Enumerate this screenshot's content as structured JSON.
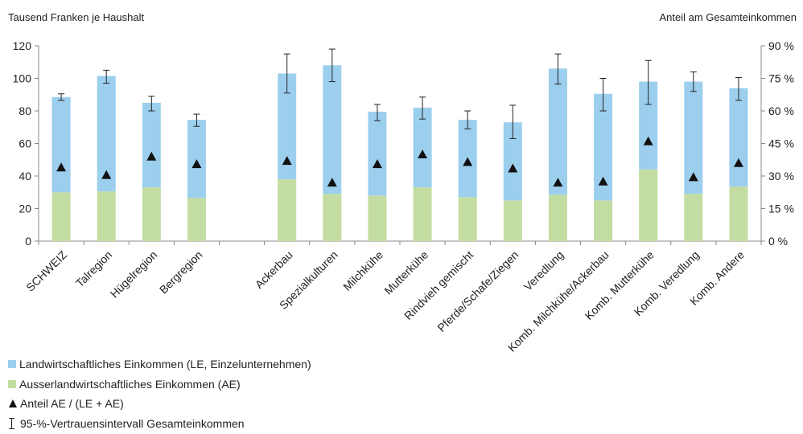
{
  "chart_data": {
    "type": "bar",
    "left_axis_title": "Tausend Franken je Haushalt",
    "right_axis_title": "Anteil am Gesamteinkommen",
    "ylim": [
      0,
      120
    ],
    "yticks": [
      "0",
      "20",
      "40",
      "60",
      "80",
      "100",
      "120"
    ],
    "y2lim": [
      0,
      90
    ],
    "y2ticks": [
      "0 %",
      "15 %",
      "30 %",
      "45 %",
      "60 %",
      "75 %",
      "90 %"
    ],
    "stacked": true,
    "categories": [
      "SCHWEIZ",
      "Talregion",
      "Hügelregion",
      "Bergregion",
      "Ackerbau",
      "Spezialkulturen",
      "Milchkühe",
      "Mutterkühe",
      "Rindvieh gemischt",
      "Pferde/Schafe/Ziegen",
      "Veredlung",
      "Komb. Milchkühe/Ackerbau",
      "Komb. Mutterkühe",
      "Komb. Veredlung",
      "Komb. Andere"
    ],
    "series": [
      {
        "name": "Ausserlandwirtschaftliches Einkommen (AE)",
        "color": "#c3dca2",
        "values": [
          30,
          30.5,
          33,
          26.5,
          38,
          29,
          28,
          33,
          27,
          25,
          28.5,
          25,
          44,
          29,
          33.5
        ]
      },
      {
        "name": "Landwirtschaftliches Einkommen (LE, Einzelunternehmen)",
        "color": "#9ccfee",
        "values": [
          58.5,
          71,
          52,
          48,
          65,
          79,
          51.5,
          49,
          47.5,
          48,
          77.5,
          65.5,
          54,
          69,
          60.5
        ]
      }
    ],
    "error_bars": {
      "name": "95-%-Vertrauensintervall Gesamteinkommen",
      "low": [
        86.5,
        97,
        80,
        70.5,
        91,
        98,
        74,
        75,
        69,
        63,
        96.5,
        80,
        84,
        92,
        86.5
      ],
      "high": [
        90.5,
        105,
        89,
        78,
        115,
        118,
        84,
        88.5,
        80,
        83.5,
        115,
        100,
        111,
        104,
        100.5
      ]
    },
    "markers": {
      "name": "Anteil AE / (LE + AE)",
      "axis": "right",
      "values": [
        34,
        30.5,
        39,
        35.5,
        37,
        27,
        35.5,
        40,
        36.5,
        33.5,
        27,
        27.5,
        46,
        29.5,
        36
      ]
    },
    "grid": false
  },
  "legend": [
    {
      "label": "Landwirtschaftliches Einkommen (LE, Einzelunternehmen)",
      "color": "#9ccfee",
      "kind": "box"
    },
    {
      "label": "Ausserlandwirtschaftliches Einkommen (AE)",
      "color": "#c3dca2",
      "kind": "box"
    },
    {
      "label": "Anteil AE / (LE + AE)",
      "kind": "triangle"
    },
    {
      "label": "95-%-Vertrauensintervall Gesamteinkommen",
      "kind": "errorbar"
    }
  ]
}
